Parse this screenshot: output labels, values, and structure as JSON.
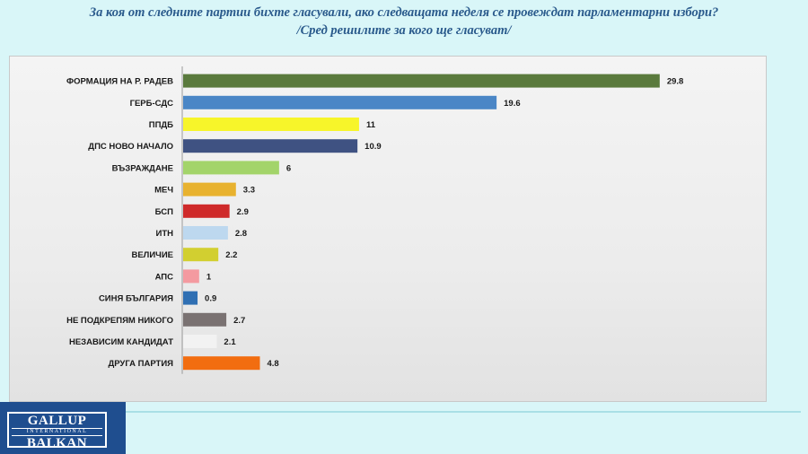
{
  "header": {
    "title": "За коя от следните партии бихте  гласували,  ако следващата неделя се провеждат парламентарни избори?",
    "subtitle": "/Сред решилите за кого ще гласуват/"
  },
  "logo": {
    "top": "GALLUP",
    "middle": "INTERNATIONAL",
    "bottom": "BALKAN"
  },
  "chart_data": {
    "type": "bar",
    "orientation": "horizontal",
    "categories": [
      "ФОРМАЦИЯ НА Р. РАДЕВ",
      "ГЕРБ-СДС",
      "ППДБ",
      "ДПС НОВО НАЧАЛО",
      "ВЪЗРАЖДАНЕ",
      "МЕЧ",
      "БСП",
      "ИТН",
      "ВЕЛИЧИЕ",
      "АПС",
      "СИНЯ БЪЛГАРИЯ",
      "НЕ ПОДКРЕПЯМ НИКОГО",
      "НЕЗАВИСИМ КАНДИДАТ",
      "ДРУГА ПАРТИЯ"
    ],
    "values": [
      29.8,
      19.6,
      11,
      10.9,
      6,
      3.3,
      2.9,
      2.8,
      2.2,
      1,
      0.9,
      2.7,
      2.1,
      4.8
    ],
    "value_labels": [
      "29.8",
      "19.6",
      "11",
      "10.9",
      "6",
      "3.3",
      "2.9",
      "2.8",
      "2.2",
      "1",
      "0.9",
      "2.7",
      "2.1",
      "4.8"
    ],
    "colors": [
      "#5a7a3d",
      "#4a86c6",
      "#f7f52a",
      "#3f5282",
      "#a3d46a",
      "#e8b22f",
      "#cf2a2a",
      "#bdd8ef",
      "#d2cf30",
      "#f49aa0",
      "#2f6fb3",
      "#7a7272",
      "#f2f2f2",
      "#f26d10"
    ],
    "xlim": [
      0,
      32
    ],
    "grid": false,
    "legend": "none"
  }
}
